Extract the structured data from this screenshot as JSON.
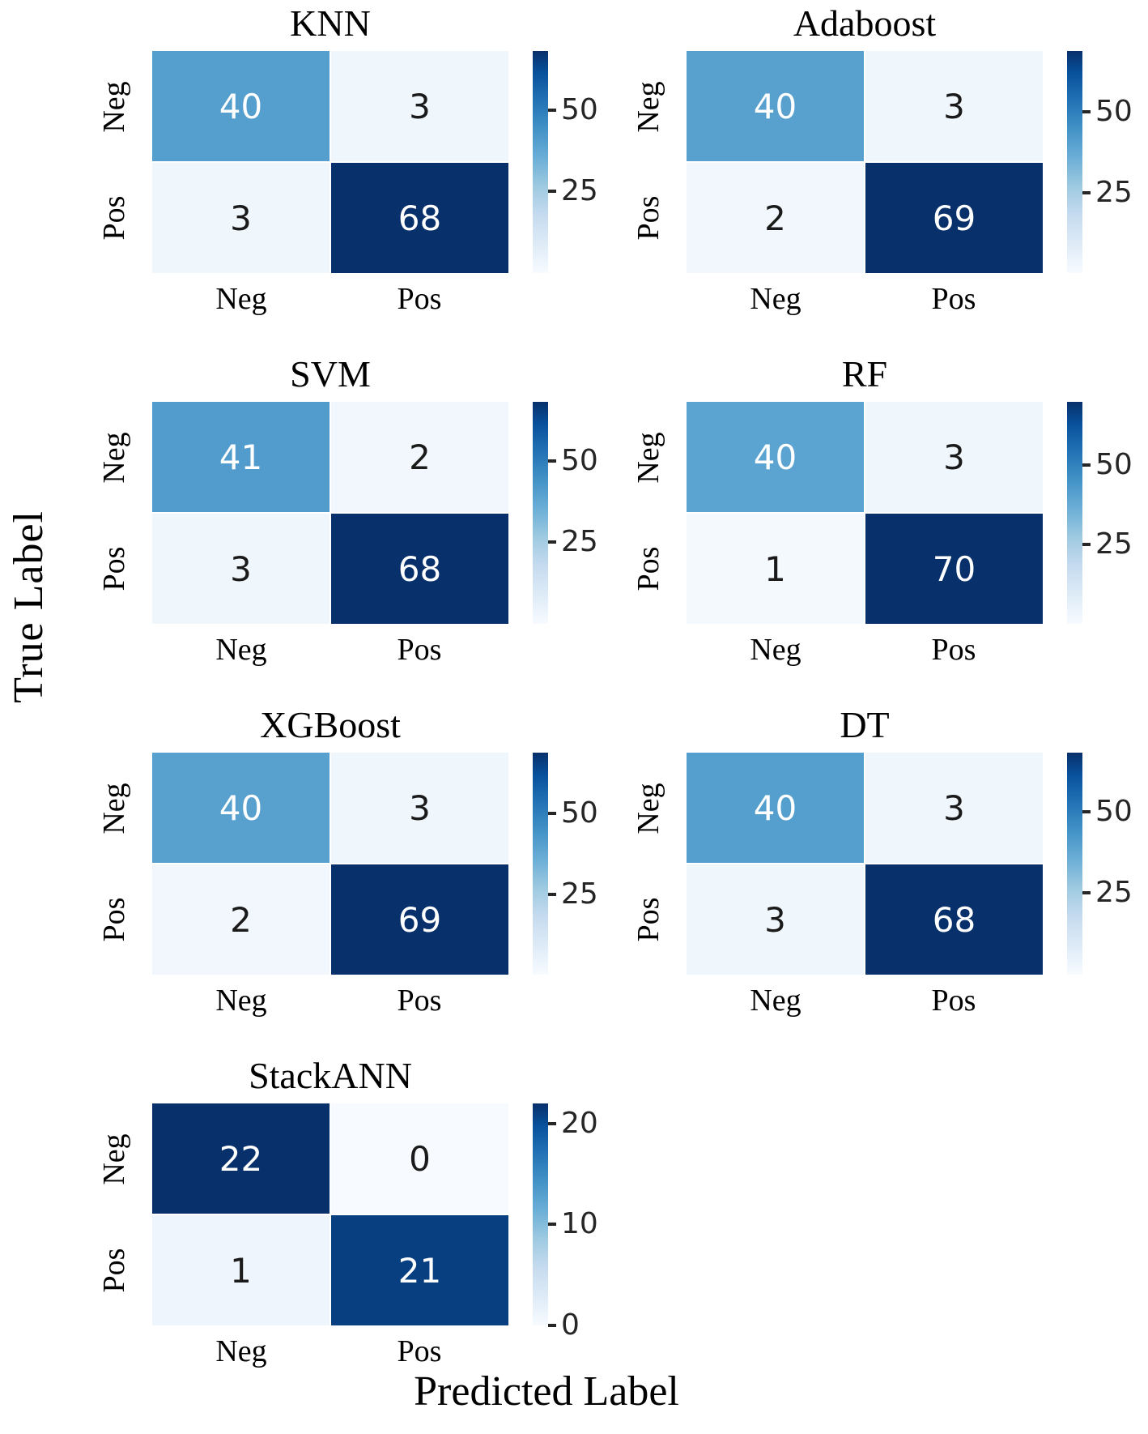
{
  "figure": {
    "y_axis_label": "True Label",
    "x_axis_label": "Predicted Label"
  },
  "colors": {
    "colormap": "Blues",
    "cmap_stops": [
      [
        0.0,
        "#f7fbff"
      ],
      [
        0.13,
        "#deebf7"
      ],
      [
        0.26,
        "#c6dbef"
      ],
      [
        0.39,
        "#9ecae1"
      ],
      [
        0.52,
        "#6baed6"
      ],
      [
        0.65,
        "#4292c6"
      ],
      [
        0.78,
        "#2171b5"
      ],
      [
        0.9,
        "#08519c"
      ],
      [
        1.0,
        "#08306b"
      ]
    ],
    "cell_text_light": "#ffffff",
    "cell_text_dark": "#1a1a1a",
    "tick_color": "#262626"
  },
  "chart_data": [
    {
      "type": "heatmap",
      "title": "KNN",
      "rows": [
        "Neg",
        "Pos"
      ],
      "cols": [
        "Neg",
        "Pos"
      ],
      "values": [
        [
          40,
          3
        ],
        [
          3,
          68
        ]
      ],
      "vmin": 0,
      "vmax": 68,
      "colorbar_ticks": [
        50,
        25
      ]
    },
    {
      "type": "heatmap",
      "title": "Adaboost",
      "rows": [
        "Neg",
        "Pos"
      ],
      "cols": [
        "Neg",
        "Pos"
      ],
      "values": [
        [
          40,
          3
        ],
        [
          2,
          69
        ]
      ],
      "vmin": 0,
      "vmax": 69,
      "colorbar_ticks": [
        50,
        25
      ]
    },
    {
      "type": "heatmap",
      "title": "SVM",
      "rows": [
        "Neg",
        "Pos"
      ],
      "cols": [
        "Neg",
        "Pos"
      ],
      "values": [
        [
          41,
          2
        ],
        [
          3,
          68
        ]
      ],
      "vmin": 0,
      "vmax": 68,
      "colorbar_ticks": [
        50,
        25
      ]
    },
    {
      "type": "heatmap",
      "title": "RF",
      "rows": [
        "Neg",
        "Pos"
      ],
      "cols": [
        "Neg",
        "Pos"
      ],
      "values": [
        [
          40,
          3
        ],
        [
          1,
          70
        ]
      ],
      "vmin": 0,
      "vmax": 70,
      "colorbar_ticks": [
        50,
        25
      ]
    },
    {
      "type": "heatmap",
      "title": "XGBoost",
      "rows": [
        "Neg",
        "Pos"
      ],
      "cols": [
        "Neg",
        "Pos"
      ],
      "values": [
        [
          40,
          3
        ],
        [
          2,
          69
        ]
      ],
      "vmin": 0,
      "vmax": 69,
      "colorbar_ticks": [
        50,
        25
      ]
    },
    {
      "type": "heatmap",
      "title": "DT",
      "rows": [
        "Neg",
        "Pos"
      ],
      "cols": [
        "Neg",
        "Pos"
      ],
      "values": [
        [
          40,
          3
        ],
        [
          3,
          68
        ]
      ],
      "vmin": 0,
      "vmax": 68,
      "colorbar_ticks": [
        50,
        25
      ]
    },
    {
      "type": "heatmap",
      "title": "StackANN",
      "rows": [
        "Neg",
        "Pos"
      ],
      "cols": [
        "Neg",
        "Pos"
      ],
      "values": [
        [
          22,
          0
        ],
        [
          1,
          21
        ]
      ],
      "vmin": 0,
      "vmax": 22,
      "colorbar_ticks": [
        20,
        10,
        0
      ]
    }
  ]
}
